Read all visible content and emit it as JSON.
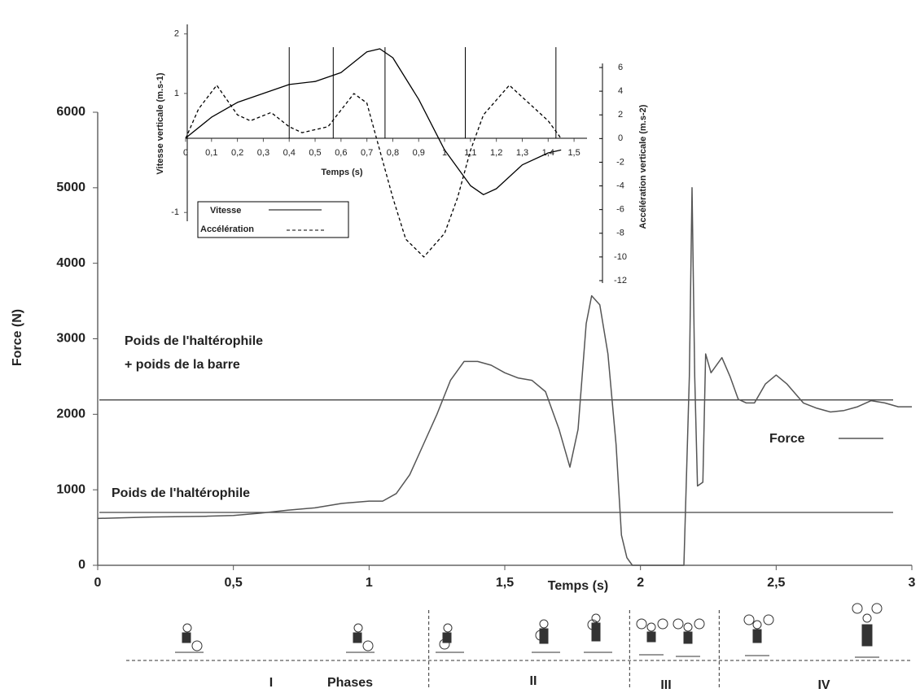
{
  "chart_data": [
    {
      "type": "line",
      "xlabel": "Temps (s)",
      "ylabel": "Force (N)",
      "xlim": [
        0,
        3
      ],
      "ylim": [
        0,
        6000
      ],
      "xticks": [
        0,
        {
          "value": 0.5,
          "label": "0,5"
        },
        1,
        {
          "value": 1.5,
          "label": "1,5"
        },
        2,
        {
          "value": 2.5,
          "label": "2,5"
        },
        3
      ],
      "yticks": [
        0,
        1000,
        2000,
        3000,
        4000,
        5000,
        6000
      ],
      "series": [
        {
          "name": "Force",
          "color": "#555555",
          "x": [
            0,
            0.2,
            0.4,
            0.5,
            0.6,
            0.7,
            0.8,
            0.9,
            1.0,
            1.05,
            1.1,
            1.15,
            1.2,
            1.25,
            1.3,
            1.35,
            1.4,
            1.45,
            1.5,
            1.55,
            1.6,
            1.65,
            1.7,
            1.74,
            1.77,
            1.8,
            1.82,
            1.85,
            1.88,
            1.91,
            1.93,
            1.95,
            1.97,
            2.0,
            2.1,
            2.16,
            2.18,
            2.19,
            2.2,
            2.21,
            2.23,
            2.24,
            2.26,
            2.3,
            2.33,
            2.36,
            2.39,
            2.42,
            2.46,
            2.5,
            2.54,
            2.6,
            2.65,
            2.7,
            2.75,
            2.8,
            2.85,
            2.9,
            2.95,
            3.0
          ],
          "values": [
            620,
            640,
            650,
            660,
            690,
            730,
            760,
            820,
            850,
            850,
            950,
            1200,
            1600,
            2000,
            2450,
            2700,
            2700,
            2650,
            2550,
            2480,
            2450,
            2300,
            1800,
            1300,
            1800,
            3200,
            3570,
            3450,
            2800,
            1600,
            400,
            100,
            0,
            0,
            0,
            0,
            2500,
            5000,
            2500,
            1050,
            1100,
            2800,
            2550,
            2750,
            2500,
            2200,
            2150,
            2150,
            2400,
            2520,
            2400,
            2150,
            2080,
            2030,
            2050,
            2100,
            2180,
            2150,
            2100,
            2100
          ]
        }
      ],
      "hlines": [
        {
          "value": 2190,
          "label": [
            "Poids de l'haltérophile",
            "+ poids de la barre"
          ]
        },
        {
          "value": 700,
          "label": [
            "Poids de l'haltérophile"
          ]
        }
      ],
      "phases": {
        "title": "Phases",
        "labels": [
          "I",
          "II",
          "III",
          "IV"
        ],
        "bounds": [
          1.22,
          1.96,
          2.29
        ]
      }
    },
    {
      "type": "line",
      "xlabel": "Temps (s)",
      "ylabel": "Vitesse verticale (m.s-1)",
      "y2label": "Accélération verticale (m.s-2)",
      "xlim": [
        0,
        1.55
      ],
      "ylim": [
        -1.12,
        2.16
      ],
      "y2lim": [
        -12,
        6
      ],
      "xticks": [
        0,
        {
          "value": 0.1,
          "label": "0,1"
        },
        {
          "value": 0.2,
          "label": "0,2"
        },
        {
          "value": 0.3,
          "label": "0,3"
        },
        {
          "value": 0.4,
          "label": "0,4"
        },
        {
          "value": 0.5,
          "label": "0,5"
        },
        {
          "value": 0.6,
          "label": "0,6"
        },
        {
          "value": 0.7,
          "label": "0,7"
        },
        {
          "value": 0.8,
          "label": "0,8"
        },
        {
          "value": 0.9,
          "label": "0,9"
        },
        1,
        {
          "value": 1.1,
          "label": "1,1"
        },
        {
          "value": 1.2,
          "label": "1,2"
        },
        {
          "value": 1.3,
          "label": "1,3"
        },
        {
          "value": 1.4,
          "label": "1,4"
        },
        {
          "value": 1.5,
          "label": "1,5"
        }
      ],
      "yticks": [
        -1,
        1,
        2
      ],
      "y2ticks": [
        -12,
        -10,
        -8,
        -6,
        -4,
        -2,
        0,
        2,
        4,
        6
      ],
      "vlines": [
        0.4,
        0.57,
        0.77,
        1.08,
        1.43
      ],
      "series": [
        {
          "name": "Vitesse",
          "color": "#000000",
          "dashed": false,
          "x": [
            0,
            0.1,
            0.2,
            0.3,
            0.4,
            0.5,
            0.6,
            0.7,
            0.75,
            0.8,
            0.9,
            1.0,
            1.1,
            1.15,
            1.2,
            1.3,
            1.4,
            1.45
          ],
          "values": [
            0.25,
            0.6,
            0.85,
            1.0,
            1.15,
            1.2,
            1.35,
            1.7,
            1.75,
            1.6,
            0.9,
            0.05,
            -0.55,
            -0.7,
            -0.6,
            -0.2,
            0.0,
            0.05
          ]
        },
        {
          "name": "Accélération",
          "color": "#000000",
          "dashed": true,
          "axis": "y2",
          "x": [
            0,
            0.05,
            0.12,
            0.2,
            0.25,
            0.33,
            0.4,
            0.45,
            0.55,
            0.65,
            0.7,
            0.75,
            0.8,
            0.85,
            0.92,
            1.0,
            1.05,
            1.1,
            1.15,
            1.25,
            1.3,
            1.4,
            1.45
          ],
          "values": [
            0,
            2.5,
            4.5,
            2,
            1.5,
            2.2,
            1.0,
            0.5,
            1,
            3.8,
            3,
            -1,
            -5,
            -8.5,
            -10,
            -8,
            -5,
            -1,
            2,
            4.5,
            3.5,
            1.5,
            0
          ]
        }
      ]
    }
  ]
}
